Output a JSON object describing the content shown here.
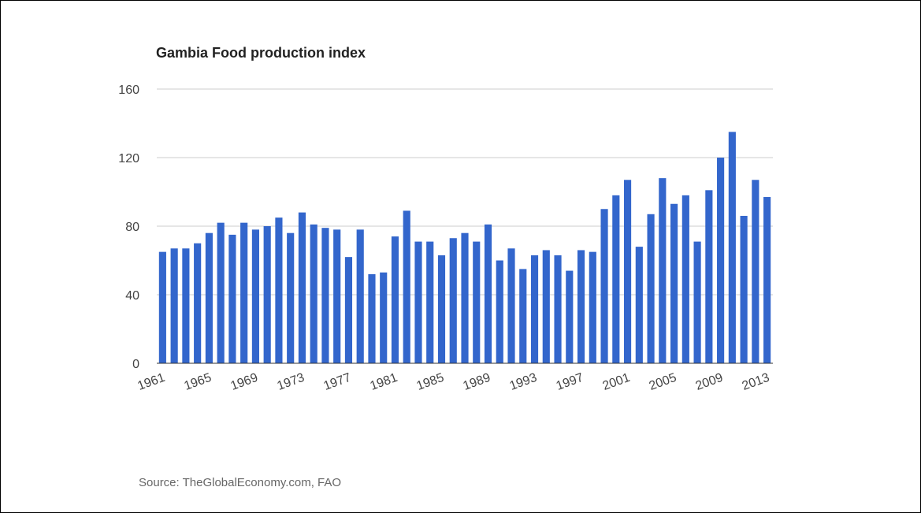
{
  "colors": {
    "bar": "#3366cc",
    "grid": "#cccccc",
    "axis": "#333333"
  },
  "source": "Source: TheGlobalEconomy.com, FAO",
  "chart_data": {
    "type": "bar",
    "title": "Gambia Food production index",
    "xlabel": "",
    "ylabel": "",
    "ylim": [
      0,
      160
    ],
    "yticks": [
      0,
      40,
      80,
      120,
      160
    ],
    "grid": true,
    "legend": "none",
    "categories": [
      "1961",
      "1962",
      "1963",
      "1964",
      "1965",
      "1966",
      "1967",
      "1968",
      "1969",
      "1970",
      "1971",
      "1972",
      "1973",
      "1974",
      "1975",
      "1976",
      "1977",
      "1978",
      "1979",
      "1980",
      "1981",
      "1982",
      "1983",
      "1984",
      "1985",
      "1986",
      "1987",
      "1988",
      "1989",
      "1990",
      "1991",
      "1992",
      "1993",
      "1994",
      "1995",
      "1996",
      "1997",
      "1998",
      "1999",
      "2000",
      "2001",
      "2002",
      "2003",
      "2004",
      "2005",
      "2006",
      "2007",
      "2008",
      "2009",
      "2010",
      "2011",
      "2012",
      "2013"
    ],
    "x_tick_labels": [
      "1961",
      "1965",
      "1969",
      "1973",
      "1977",
      "1981",
      "1985",
      "1989",
      "1993",
      "1997",
      "2001",
      "2005",
      "2009",
      "2013"
    ],
    "values": [
      65,
      67,
      67,
      70,
      76,
      82,
      75,
      82,
      78,
      80,
      85,
      76,
      88,
      81,
      79,
      78,
      62,
      78,
      52,
      53,
      74,
      89,
      71,
      71,
      63,
      73,
      76,
      71,
      81,
      60,
      67,
      55,
      63,
      66,
      63,
      54,
      66,
      65,
      90,
      98,
      107,
      68,
      87,
      108,
      93,
      98,
      71,
      101,
      120,
      135,
      86,
      107,
      97
    ]
  }
}
